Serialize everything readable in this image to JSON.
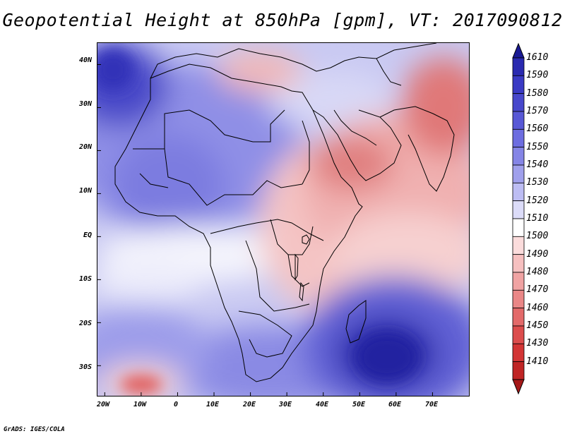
{
  "title": "Geopotential Height at 850hPa [gpm], VT: 2017090812",
  "credit": "GrADS: IGES/COLA",
  "map": {
    "lon_range": [
      -22,
      80
    ],
    "lat_range": [
      -37,
      45
    ],
    "lat_ticks": [
      {
        "value": 40,
        "label": "40N"
      },
      {
        "value": 30,
        "label": "30N"
      },
      {
        "value": 20,
        "label": "20N"
      },
      {
        "value": 10,
        "label": "10N"
      },
      {
        "value": 0,
        "label": "EQ"
      },
      {
        "value": -10,
        "label": "10S"
      },
      {
        "value": -20,
        "label": "20S"
      },
      {
        "value": -30,
        "label": "30S"
      }
    ],
    "lon_ticks": [
      {
        "value": -20,
        "label": "20W"
      },
      {
        "value": -10,
        "label": "10W"
      },
      {
        "value": 0,
        "label": "0"
      },
      {
        "value": 10,
        "label": "10E"
      },
      {
        "value": 20,
        "label": "20E"
      },
      {
        "value": 30,
        "label": "30E"
      },
      {
        "value": 40,
        "label": "40E"
      },
      {
        "value": 50,
        "label": "50E"
      },
      {
        "value": 60,
        "label": "60E"
      },
      {
        "value": 70,
        "label": "70E"
      }
    ],
    "features": [
      {
        "name": "high-north-atlantic",
        "lon": -20,
        "lat": 41,
        "value": 1580
      },
      {
        "name": "high-south-indian-ocean",
        "lon": 56,
        "lat": -32,
        "value": 1590
      },
      {
        "name": "low-south-atlantic",
        "lon": -12,
        "lat": -34,
        "value": 1480
      },
      {
        "name": "low-arabian-peninsula",
        "lon": 48,
        "lat": 16,
        "value": 1470
      },
      {
        "name": "low-south-asia",
        "lon": 75,
        "lat": 28,
        "value": 1460
      }
    ]
  },
  "colorbar": {
    "colors": [
      "#1a1a94",
      "#2a2ab0",
      "#3a3ac4",
      "#4848cc",
      "#5858d6",
      "#6d6de0",
      "#8585e6",
      "#a0a0ec",
      "#bdbdf3",
      "#dcdcf9",
      "#ffffff",
      "#fbdcdc",
      "#f6c0c0",
      "#f0a3a3",
      "#ea8787",
      "#e36a6a",
      "#dc4d4d",
      "#d33535",
      "#c02525",
      "#a51818"
    ],
    "labels": [
      "1610",
      "1590",
      "1580",
      "1570",
      "1560",
      "1550",
      "1540",
      "1530",
      "1520",
      "1510",
      "1500",
      "1490",
      "1480",
      "1470",
      "1460",
      "1450",
      "1430",
      "1410"
    ]
  }
}
